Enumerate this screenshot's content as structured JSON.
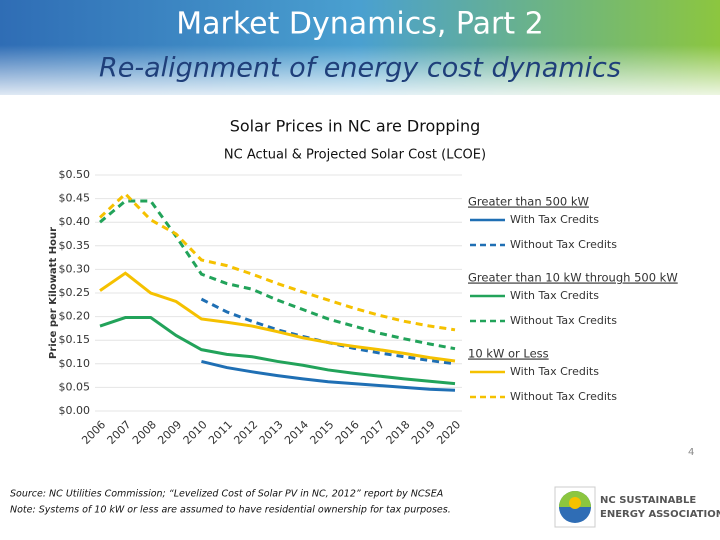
{
  "header": {
    "title": "Market Dynamics, Part 2",
    "subtitle": "Re-alignment of energy cost dynamics"
  },
  "chart_data": {
    "type": "line",
    "title": "Solar Prices in NC are Dropping",
    "subtitle": "NC Actual & Projected Solar Cost (LCOE)",
    "y_label": "Price per Kilowatt Hour",
    "categories": [
      "2006",
      "2007",
      "2008",
      "2009",
      "2010",
      "2011",
      "2012",
      "2013",
      "2014",
      "2015",
      "2016",
      "2017",
      "2018",
      "2019",
      "2020"
    ],
    "ylim": [
      0,
      0.5
    ],
    "yticks": [
      {
        "value": 0,
        "label": "$0.00"
      },
      {
        "value": 0.05,
        "label": "$0.05"
      },
      {
        "value": 0.1,
        "label": "$0.10"
      },
      {
        "value": 0.15,
        "label": "$0.15"
      },
      {
        "value": 0.2,
        "label": "$0.20"
      },
      {
        "value": 0.25,
        "label": "$0.25"
      },
      {
        "value": 0.3,
        "label": "$0.30"
      },
      {
        "value": 0.35,
        "label": "$0.35"
      },
      {
        "value": 0.4,
        "label": "$0.40"
      },
      {
        "value": 0.45,
        "label": "$0.45"
      },
      {
        "value": 0.5,
        "label": "$0.50"
      }
    ],
    "grid": true,
    "groups": [
      {
        "title": "Greater than 500 kW",
        "series": [
          {
            "name": "With Tax Credits",
            "color": "#1f6fb4",
            "dashed": false,
            "values": [
              null,
              null,
              null,
              null,
              0.105,
              0.092,
              0.083,
              0.075,
              0.068,
              0.062,
              0.058,
              0.054,
              0.05,
              0.046,
              0.044
            ]
          },
          {
            "name": "Without Tax Credits",
            "color": "#1f6fb4",
            "dashed": true,
            "values": [
              null,
              null,
              null,
              null,
              0.237,
              0.21,
              0.19,
              0.172,
              0.158,
              0.145,
              0.133,
              0.123,
              0.115,
              0.107,
              0.1
            ]
          }
        ]
      },
      {
        "title": "Greater than 10 kW through 500 kW",
        "series": [
          {
            "name": "With Tax Credits",
            "color": "#22a35a",
            "dashed": false,
            "values": [
              0.18,
              0.198,
              0.198,
              0.16,
              0.13,
              0.12,
              0.115,
              0.105,
              0.097,
              0.087,
              0.08,
              0.074,
              0.068,
              0.063,
              0.058
            ]
          },
          {
            "name": "Without Tax Credits",
            "color": "#22a35a",
            "dashed": true,
            "values": [
              0.4,
              0.445,
              0.445,
              0.37,
              0.29,
              0.27,
              0.258,
              0.235,
              0.215,
              0.195,
              0.18,
              0.165,
              0.153,
              0.142,
              0.132
            ]
          }
        ]
      },
      {
        "title": "10 kW or Less",
        "series": [
          {
            "name": "With Tax Credits",
            "color": "#f5c100",
            "dashed": false,
            "values": [
              0.255,
              0.292,
              0.25,
              0.232,
              0.195,
              0.188,
              0.18,
              0.168,
              0.155,
              0.145,
              0.137,
              0.13,
              0.122,
              0.113,
              0.106
            ]
          },
          {
            "name": "Without Tax Credits",
            "color": "#f5c100",
            "dashed": true,
            "values": [
              0.41,
              0.46,
              0.405,
              0.375,
              0.32,
              0.308,
              0.29,
              0.27,
              0.252,
              0.235,
              0.218,
              0.203,
              0.19,
              0.18,
              0.172
            ]
          }
        ]
      }
    ]
  },
  "page_number": "4",
  "footer": {
    "source": "Source: NC Utilities Commission; “Levelized Cost of Solar PV in NC, 2012” report by NCSEA",
    "note": "Note:  Systems of 10 kW or less are assumed to have residential ownership for tax purposes."
  },
  "logo": {
    "line1": "NC SUSTAINABLE",
    "line2": "ENERGY ASSOCIATION"
  }
}
